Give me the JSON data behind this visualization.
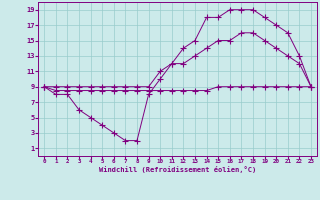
{
  "xlabel": "Windchill (Refroidissement éolien,°C)",
  "xlim": [
    -0.5,
    23.5
  ],
  "ylim": [
    0,
    20
  ],
  "xtick_vals": [
    0,
    1,
    2,
    3,
    4,
    5,
    6,
    7,
    8,
    9,
    10,
    11,
    12,
    13,
    14,
    15,
    16,
    17,
    18,
    19,
    20,
    21,
    22,
    23
  ],
  "ytick_vals": [
    1,
    3,
    5,
    7,
    9,
    11,
    13,
    15,
    17,
    19
  ],
  "bg_color": "#cceaea",
  "line_color": "#800080",
  "grid_color": "#99cccc",
  "line1_x": [
    0,
    1,
    2,
    3,
    4,
    5,
    6,
    7,
    8,
    9,
    10,
    11,
    12,
    13,
    14,
    15,
    16,
    17,
    18,
    19,
    20,
    21,
    22,
    23
  ],
  "line1_y": [
    9,
    8.5,
    8.5,
    8.5,
    8.5,
    8.5,
    8.5,
    8.5,
    8.5,
    8.5,
    8.5,
    8.5,
    8.5,
    8.5,
    8.5,
    9,
    9,
    9,
    9,
    9,
    9,
    9,
    9,
    9
  ],
  "line2_x": [
    0,
    1,
    2,
    3,
    4,
    5,
    6,
    7,
    8,
    9,
    10,
    11,
    12,
    13,
    14,
    15,
    16,
    17,
    18,
    19,
    20,
    21,
    22,
    23
  ],
  "line2_y": [
    9,
    8,
    8,
    6,
    5,
    4,
    3,
    2,
    2,
    8,
    10,
    12,
    12,
    13,
    14,
    15,
    15,
    16,
    16,
    15,
    14,
    13,
    12,
    9
  ],
  "line3_x": [
    0,
    1,
    2,
    3,
    4,
    5,
    6,
    7,
    8,
    9,
    10,
    11,
    12,
    13,
    14,
    15,
    16,
    17,
    18,
    19,
    20,
    21,
    22,
    23
  ],
  "line3_y": [
    9,
    9,
    9,
    9,
    9,
    9,
    9,
    9,
    9,
    9,
    11,
    12,
    14,
    15,
    18,
    18,
    19,
    19,
    19,
    18,
    17,
    16,
    13,
    9
  ]
}
